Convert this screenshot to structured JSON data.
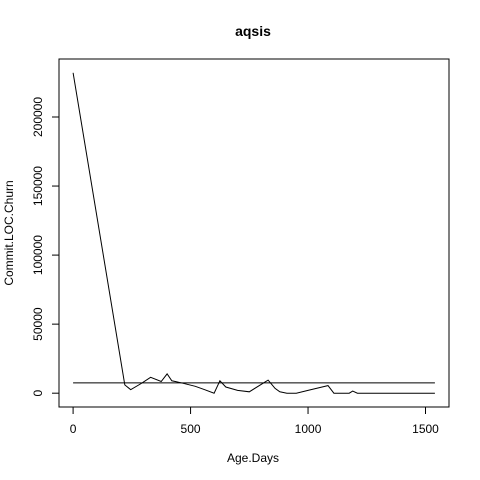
{
  "chart_data": {
    "type": "line",
    "title": "aqsis",
    "xlabel": "Age.Days",
    "ylabel": "Commit.LOC.Churn",
    "xlim": [
      -60,
      1600
    ],
    "ylim": [
      -10000,
      242000
    ],
    "x_ticks": [
      0,
      500,
      1000,
      1500
    ],
    "y_ticks": [
      0,
      50000,
      100000,
      150000,
      200000
    ],
    "grid": false,
    "legend": "none",
    "series": [
      {
        "x": [
          0,
          220,
          245,
          290,
          330,
          375,
          400,
          420,
          460,
          520,
          560,
          600,
          625,
          650,
          700,
          750,
          830,
          860,
          880,
          910,
          950,
          1000,
          1060,
          1085,
          1110,
          1150,
          1175,
          1190,
          1210,
          1300,
          1400,
          1540
        ],
        "y": [
          232000,
          6000,
          2500,
          7000,
          11500,
          8500,
          14000,
          9000,
          7500,
          5000,
          2500,
          0,
          9000,
          4500,
          2000,
          1000,
          9500,
          3500,
          1000,
          0,
          0,
          2000,
          4500,
          5500,
          0,
          0,
          0,
          1500,
          0,
          0,
          0,
          0
        ]
      }
    ],
    "reference_line": {
      "y": 7500,
      "x_range": [
        0,
        1540
      ]
    }
  }
}
